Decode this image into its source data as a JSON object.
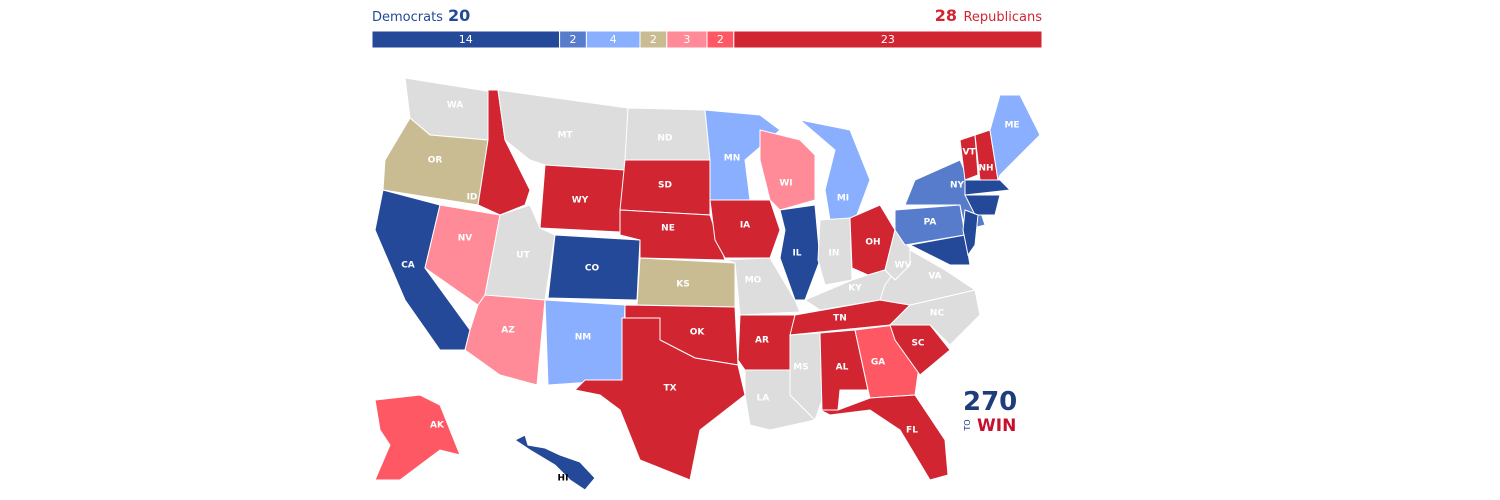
{
  "header": {
    "dem_label": "Democrats",
    "dem_total": "20",
    "rep_total": "28",
    "rep_label": "Republicans"
  },
  "bar": {
    "segments": [
      {
        "value": 14,
        "color": "#244999"
      },
      {
        "value": 2,
        "color": "#577ccc"
      },
      {
        "value": 4,
        "color": "#8aafff"
      },
      {
        "value": 2,
        "color": "#c9bc92"
      },
      {
        "value": 3,
        "color": "#ff8b98"
      },
      {
        "value": 2,
        "color": "#ff5865"
      },
      {
        "value": 23,
        "color": "#d22532"
      }
    ]
  },
  "map": {
    "states": [
      {
        "label": "WA",
        "color": "#dddddd"
      },
      {
        "label": "OR",
        "color": "#c9bc92"
      },
      {
        "label": "CA",
        "color": "#244999"
      },
      {
        "label": "NV",
        "color": "#ff8b98"
      },
      {
        "label": "ID",
        "color": "#d22532"
      },
      {
        "label": "MT",
        "color": "#dddddd"
      },
      {
        "label": "WY",
        "color": "#d22532"
      },
      {
        "label": "UT",
        "color": "#dddddd"
      },
      {
        "label": "AZ",
        "color": "#ff8b98"
      },
      {
        "label": "CO",
        "color": "#244999"
      },
      {
        "label": "NM",
        "color": "#8aafff"
      },
      {
        "label": "ND",
        "color": "#dddddd"
      },
      {
        "label": "SD",
        "color": "#d22532"
      },
      {
        "label": "NE",
        "color": "#d22532"
      },
      {
        "label": "KS",
        "color": "#c9bc92"
      },
      {
        "label": "OK",
        "color": "#d22532"
      },
      {
        "label": "TX",
        "color": "#d22532"
      },
      {
        "label": "MN",
        "color": "#8aafff"
      },
      {
        "label": "IA",
        "color": "#d22532"
      },
      {
        "label": "MO",
        "color": "#dddddd"
      },
      {
        "label": "AR",
        "color": "#d22532"
      },
      {
        "label": "LA",
        "color": "#dddddd"
      },
      {
        "label": "WI",
        "color": "#ff8b98"
      },
      {
        "label": "IL",
        "color": "#244999"
      },
      {
        "label": "MI",
        "color": "#8aafff"
      },
      {
        "label": "IN",
        "color": "#dddddd"
      },
      {
        "label": "OH",
        "color": "#d22532"
      },
      {
        "label": "KY",
        "color": "#dddddd"
      },
      {
        "label": "TN",
        "color": "#d22532"
      },
      {
        "label": "MS",
        "color": "#dddddd"
      },
      {
        "label": "AL",
        "color": "#d22532"
      },
      {
        "label": "GA",
        "color": "#ff5865"
      },
      {
        "label": "FL",
        "color": "#d22532"
      },
      {
        "label": "SC",
        "color": "#d22532"
      },
      {
        "label": "NC",
        "color": "#dddddd"
      },
      {
        "label": "VA",
        "color": "#dddddd"
      },
      {
        "label": "WV",
        "color": "#dddddd"
      },
      {
        "label": "PA",
        "color": "#577ccc"
      },
      {
        "label": "NY",
        "color": "#577ccc"
      },
      {
        "label": null,
        "color": "#244999"
      },
      {
        "label": "VT",
        "color": "#d22532"
      },
      {
        "label": "NH",
        "color": "#d22532"
      },
      {
        "label": "ME",
        "color": "#8aafff"
      },
      {
        "label": null,
        "color": "#244999"
      },
      {
        "label": null,
        "color": "#244999"
      },
      {
        "label": null,
        "color": "#244999"
      },
      {
        "label": "AK",
        "color": "#ff5865"
      },
      {
        "label": "HI",
        "color": "#244999"
      }
    ]
  },
  "logo": {
    "number": "270",
    "to": "TO",
    "win": "WIN"
  }
}
